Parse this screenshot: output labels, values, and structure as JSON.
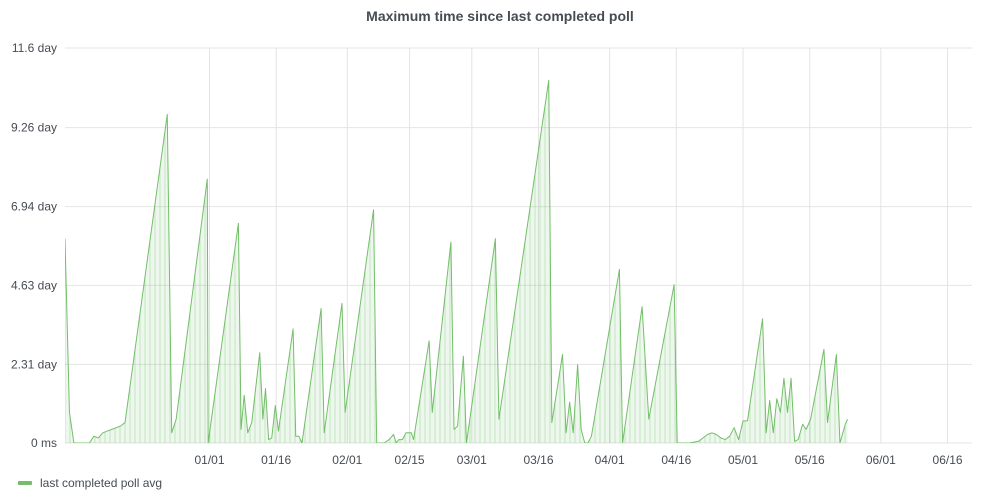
{
  "chart_data": {
    "type": "area",
    "title": "Maximum time since last completed poll",
    "xlabel": "",
    "ylabel": "",
    "yunit": "day",
    "ylim": [
      0,
      11.6
    ],
    "yticks": [
      {
        "value": 0,
        "label": "0 ms"
      },
      {
        "value": 2.31,
        "label": "2.31 day"
      },
      {
        "value": 4.63,
        "label": "4.63 day"
      },
      {
        "value": 6.94,
        "label": "6.94 day"
      },
      {
        "value": 9.26,
        "label": "9.26 day"
      },
      {
        "value": 11.6,
        "label": "11.6 day"
      }
    ],
    "xlim": [
      -32.5,
      171.5
    ],
    "xticks": [
      {
        "value": 0,
        "label": "01/01"
      },
      {
        "value": 15,
        "label": "01/16"
      },
      {
        "value": 31,
        "label": "02/01"
      },
      {
        "value": 45,
        "label": "02/15"
      },
      {
        "value": 59,
        "label": "03/01"
      },
      {
        "value": 74,
        "label": "03/16"
      },
      {
        "value": 90,
        "label": "04/01"
      },
      {
        "value": 105,
        "label": "04/16"
      },
      {
        "value": 120,
        "label": "05/01"
      },
      {
        "value": 135,
        "label": "05/16"
      },
      {
        "value": 151,
        "label": "06/01"
      },
      {
        "value": 166,
        "label": "06/16"
      }
    ],
    "grid": true,
    "legend_position": "bottom-left",
    "series": [
      {
        "name": "last completed poll avg",
        "color": "#73bf69",
        "points": [
          [
            -32.5,
            6.0
          ],
          [
            -31.5,
            0.9
          ],
          [
            -30.5,
            0.0
          ],
          [
            -29,
            0.0
          ],
          [
            -27,
            0.0
          ],
          [
            -26,
            0.2
          ],
          [
            -25,
            0.15
          ],
          [
            -24,
            0.3
          ],
          [
            -23,
            0.35
          ],
          [
            -22,
            0.4
          ],
          [
            -21,
            0.45
          ],
          [
            -20,
            0.5
          ],
          [
            -19,
            0.6
          ],
          [
            -9.5,
            9.65
          ],
          [
            -8.5,
            0.3
          ],
          [
            -7.5,
            0.7
          ],
          [
            -0.5,
            7.75
          ],
          [
            -0.3,
            0.0
          ],
          [
            6.5,
            6.45
          ],
          [
            7.1,
            0.4
          ],
          [
            7.8,
            1.4
          ],
          [
            8.6,
            0.3
          ],
          [
            9.5,
            0.6
          ],
          [
            11.3,
            2.65
          ],
          [
            12,
            0.7
          ],
          [
            12.6,
            1.6
          ],
          [
            13.3,
            0.1
          ],
          [
            14,
            0.15
          ],
          [
            14.8,
            1.1
          ],
          [
            15.5,
            0.35
          ],
          [
            18.8,
            3.35
          ],
          [
            19.4,
            0.2
          ],
          [
            20.1,
            0.2
          ],
          [
            20.8,
            0.0
          ],
          [
            25.1,
            3.95
          ],
          [
            25.8,
            0.3
          ],
          [
            29.8,
            4.1
          ],
          [
            30.5,
            0.9
          ],
          [
            36.9,
            6.85
          ],
          [
            37.6,
            0.0
          ],
          [
            39.3,
            0.0
          ],
          [
            40.4,
            0.1
          ],
          [
            41.4,
            0.25
          ],
          [
            42,
            0.0
          ],
          [
            42.6,
            0.1
          ],
          [
            43.4,
            0.1
          ],
          [
            44.2,
            0.3
          ],
          [
            45.4,
            0.3
          ],
          [
            45.9,
            0.1
          ],
          [
            49.4,
            3.0
          ],
          [
            50.1,
            0.9
          ],
          [
            54.3,
            5.9
          ],
          [
            55,
            0.4
          ],
          [
            55.8,
            0.5
          ],
          [
            57.1,
            2.55
          ],
          [
            57.8,
            0.0
          ],
          [
            64.3,
            6.0
          ],
          [
            65.1,
            0.7
          ],
          [
            76.3,
            10.65
          ],
          [
            77,
            0.6
          ],
          [
            79.4,
            2.6
          ],
          [
            80.2,
            0.3
          ],
          [
            81,
            1.2
          ],
          [
            81.8,
            0.3
          ],
          [
            82.8,
            2.3
          ],
          [
            83.6,
            0.4
          ],
          [
            84.4,
            0.0
          ],
          [
            85.1,
            0.0
          ],
          [
            85.9,
            0.2
          ],
          [
            92.2,
            5.1
          ],
          [
            92.9,
            0.0
          ],
          [
            97.3,
            4.0
          ],
          [
            98.8,
            0.7
          ],
          [
            104.5,
            4.65
          ],
          [
            105.2,
            0.0
          ],
          [
            108,
            0.0
          ],
          [
            110,
            0.05
          ],
          [
            111,
            0.15
          ],
          [
            112,
            0.25
          ],
          [
            113,
            0.3
          ],
          [
            114,
            0.25
          ],
          [
            115,
            0.15
          ],
          [
            116,
            0.1
          ],
          [
            117,
            0.2
          ],
          [
            118,
            0.45
          ],
          [
            119,
            0.1
          ],
          [
            120,
            0.65
          ],
          [
            121,
            0.65
          ],
          [
            124.4,
            3.65
          ],
          [
            125.2,
            0.3
          ],
          [
            126,
            1.25
          ],
          [
            126.8,
            0.3
          ],
          [
            127.6,
            1.3
          ],
          [
            128.4,
            0.9
          ],
          [
            129.2,
            1.9
          ],
          [
            130,
            0.9
          ],
          [
            130.8,
            1.9
          ],
          [
            131.6,
            0.05
          ],
          [
            132.4,
            0.1
          ],
          [
            133.4,
            0.55
          ],
          [
            134.2,
            0.4
          ],
          [
            135.2,
            0.7
          ],
          [
            138.2,
            2.75
          ],
          [
            139,
            0.6
          ],
          [
            141,
            2.6
          ],
          [
            141.8,
            0.0
          ],
          [
            143,
            0.55
          ],
          [
            143.5,
            0.7
          ]
        ]
      }
    ]
  }
}
